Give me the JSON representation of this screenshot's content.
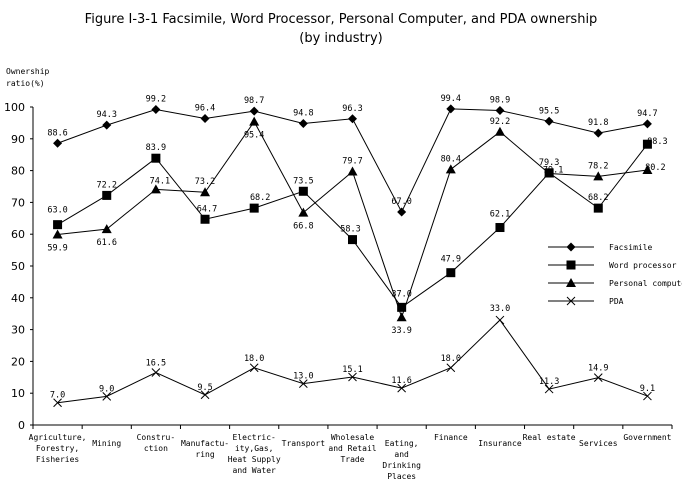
{
  "chart_data": {
    "type": "line",
    "title": "Figure I-3-1 Facsimile, Word Processor, Personal Computer, and PDA ownership",
    "subtitle": "(by industry)",
    "ylabel": "Ownership ratio(%)",
    "xlabel": "",
    "ylim": [
      0,
      100
    ],
    "yticks": [
      0,
      10,
      20,
      30,
      40,
      50,
      60,
      70,
      80,
      90,
      100
    ],
    "grid": false,
    "legend_position": "right",
    "categories": [
      "Agriculture, Forestry, Fisheries",
      "Mining",
      "Construction",
      "Manufacturing",
      "Electricity,Gas, Heat Supply and Water",
      "Transport",
      "Wholesale and Retail Trade",
      "Eating, and Drinking Places",
      "Finance",
      "Insurance",
      "Real estate",
      "Services",
      "Government"
    ],
    "category_lines": [
      [
        "Agriculture,",
        "Forestry,",
        "Fisheries"
      ],
      [
        "Mining"
      ],
      [
        "Constru-",
        "ction"
      ],
      [
        "Manufactu-",
        "ring"
      ],
      [
        "Electric-",
        "ity,Gas,",
        "Heat Supply",
        "and Water"
      ],
      [
        "Transport"
      ],
      [
        "Wholesale",
        "and Retail",
        "Trade"
      ],
      [
        "Eating,",
        "and",
        "Drinking",
        "Places"
      ],
      [
        "Finance"
      ],
      [
        "Insurance"
      ],
      [
        "Real estate"
      ],
      [
        "Services"
      ],
      [
        "Government"
      ]
    ],
    "series": [
      {
        "name": "Facsimile",
        "marker": "diamond",
        "values": [
          88.6,
          94.3,
          99.2,
          96.4,
          98.7,
          94.8,
          96.3,
          67.0,
          99.4,
          98.9,
          95.5,
          91.8,
          94.7
        ],
        "labels": [
          "88.6",
          "94.3",
          "99.2",
          "96.4",
          "98.7",
          "94.8",
          "96.3",
          "67.0",
          "99.4",
          "98.9",
          "95.5",
          "91.8",
          "94.7"
        ]
      },
      {
        "name": "Word processor",
        "marker": "square",
        "values": [
          63.0,
          72.2,
          83.9,
          64.7,
          68.2,
          73.5,
          58.3,
          37.0,
          47.9,
          62.1,
          79.3,
          68.2,
          88.3
        ],
        "labels": [
          "63.0",
          "72.2",
          "83.9",
          "64.7",
          "68.2",
          "73.5",
          "58.3",
          "37.0",
          "47.9",
          "62.1",
          "79.3",
          "68.2",
          "88.3"
        ]
      },
      {
        "name": "Personal computer",
        "marker": "triangle",
        "values": [
          59.9,
          61.6,
          74.1,
          73.2,
          95.4,
          66.8,
          79.7,
          33.9,
          80.4,
          92.2,
          79.1,
          78.2,
          80.2
        ],
        "labels": [
          "59.9",
          "61.6",
          "74.1",
          "73.2",
          "95.4",
          "66.8",
          "79.7",
          "33.9",
          "80.4",
          "92.2",
          "79.1",
          "78.2",
          "80.2"
        ]
      },
      {
        "name": "PDA",
        "marker": "x",
        "values": [
          7.0,
          9.0,
          16.5,
          9.5,
          18.0,
          13.0,
          15.1,
          11.6,
          18.0,
          33.0,
          11.3,
          14.9,
          9.1
        ],
        "labels": [
          "7.0",
          "9.0",
          "16.5",
          "9.5",
          "18.0",
          "13.0",
          "15.1",
          "11.6",
          "18.0",
          "33.0",
          "11.3",
          "14.9",
          "9.1"
        ]
      }
    ]
  },
  "colors": {
    "line": "#000000",
    "background": "#ffffff"
  }
}
